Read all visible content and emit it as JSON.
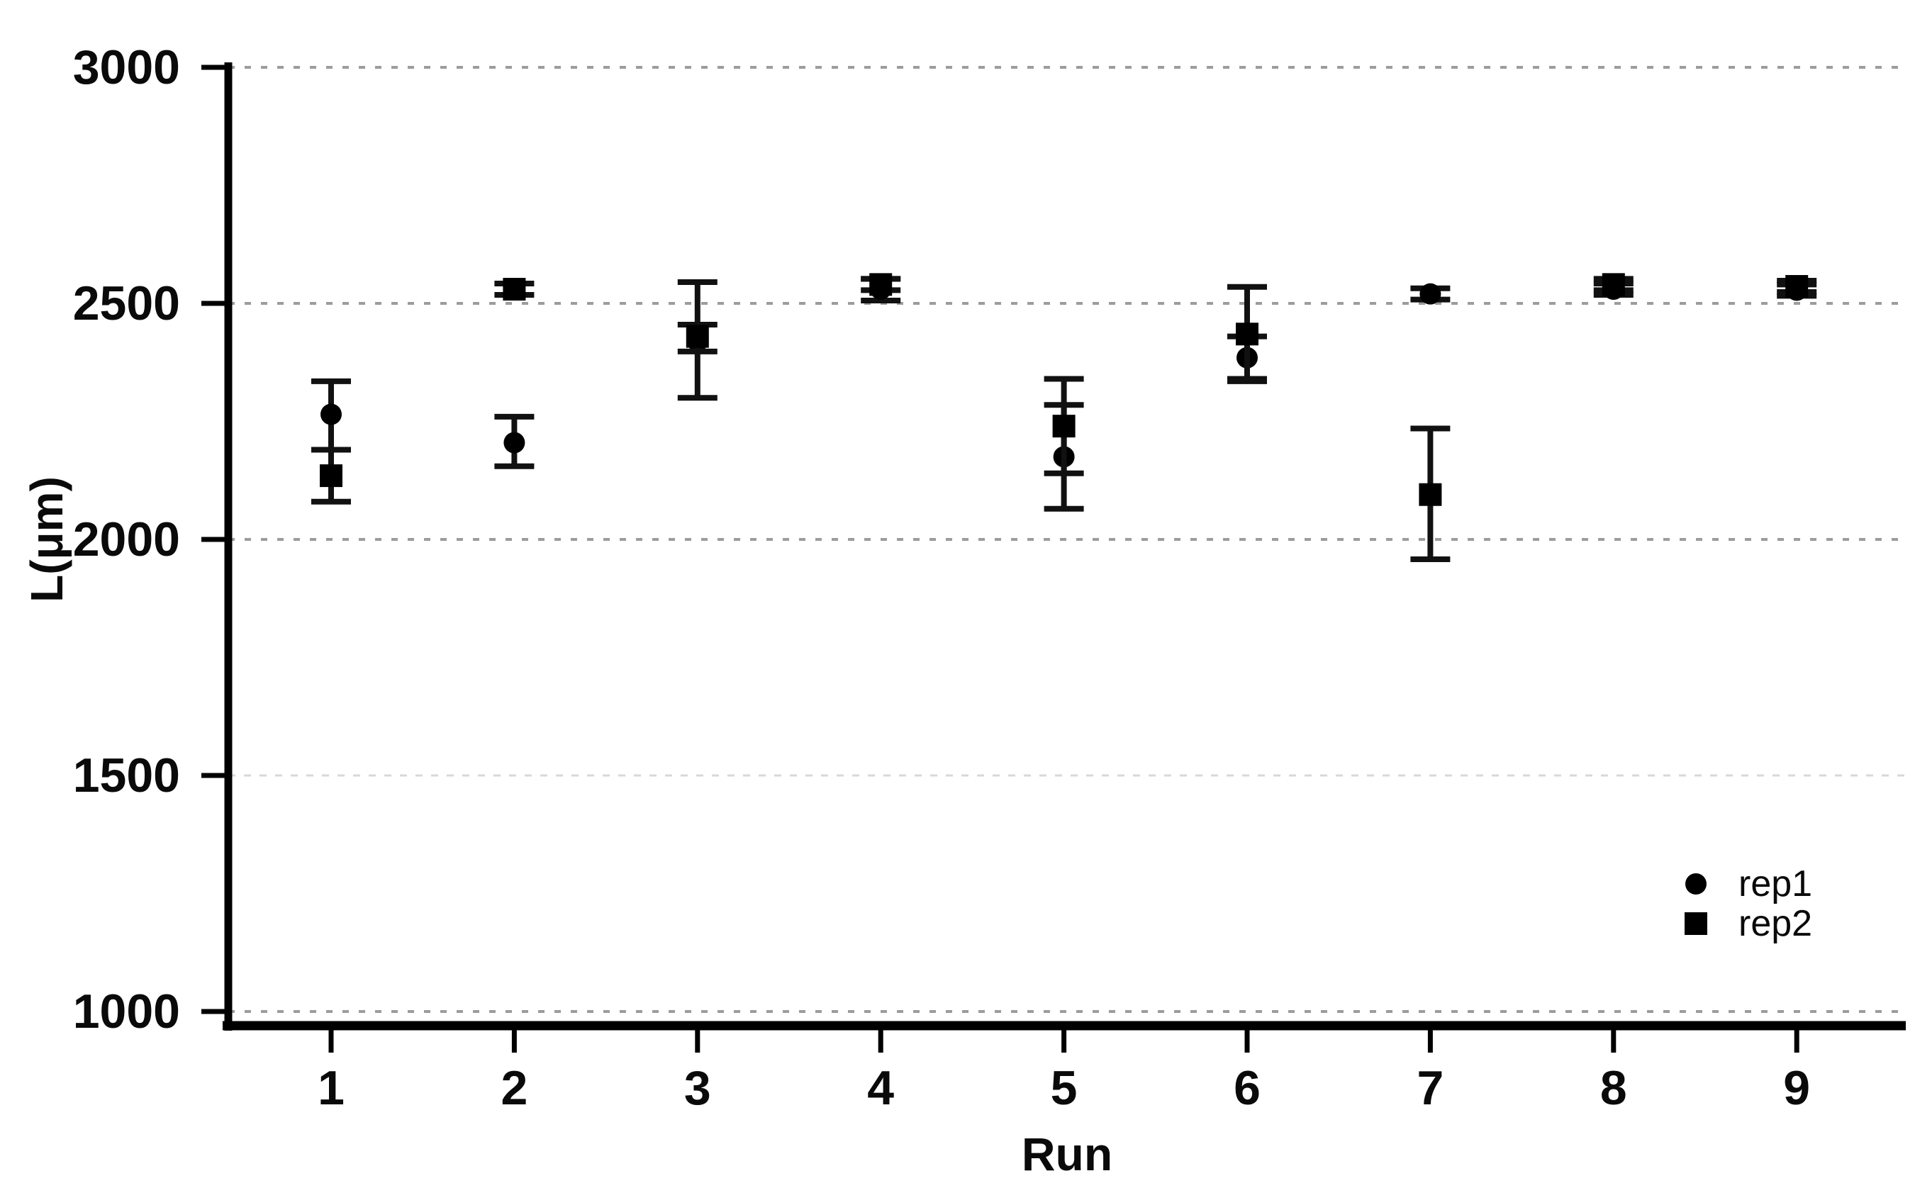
{
  "figure": {
    "background": "#ffffff"
  },
  "colors": {
    "marker": "#000000",
    "axis": "#000000",
    "error_bar": "#111111",
    "grid_major": "#9c9c9c",
    "grid_faint": "#d8d8d8",
    "text": "#0a0a0a"
  },
  "legend": {
    "position": "lower-right",
    "items": [
      {
        "label": "rep1",
        "marker": "circle"
      },
      {
        "label": "rep2",
        "marker": "square"
      }
    ]
  },
  "chart_data": {
    "type": "scatter",
    "title": "",
    "xlabel": "Run",
    "ylabel": "L(μm)",
    "xlim": [
      0.44,
      9.6
    ],
    "ylim": [
      970,
      3000
    ],
    "xticks": [
      1,
      2,
      3,
      4,
      5,
      6,
      7,
      8,
      9
    ],
    "xtick_labels": [
      "1",
      "2",
      "3",
      "4",
      "5",
      "6",
      "7",
      "8",
      "9"
    ],
    "yticks": [
      1000,
      1500,
      2000,
      2500,
      3000
    ],
    "ytick_labels": [
      "1000",
      "1500",
      "2000",
      "2500",
      "3000"
    ],
    "grid": "horizontal-dotted-at-yticks",
    "legend_position": "lower right",
    "series": [
      {
        "name": "rep1",
        "marker": "circle",
        "x": [
          1,
          2,
          3,
          4,
          5,
          6,
          7,
          8,
          9
        ],
        "y": [
          2265,
          2205,
          2420,
          2530,
          2175,
          2385,
          2520,
          2530,
          2528
        ],
        "err_low": [
          2190,
          2155,
          2300,
          2506,
          2065,
          2340,
          2508,
          2518,
          2516
        ],
        "err_high": [
          2335,
          2260,
          2545,
          2552,
          2285,
          2430,
          2532,
          2542,
          2540
        ]
      },
      {
        "name": "rep2",
        "marker": "square",
        "x": [
          1,
          2,
          3,
          4,
          5,
          6,
          7,
          8,
          9
        ],
        "y": [
          2135,
          2530,
          2430,
          2540,
          2240,
          2435,
          2095,
          2540,
          2536
        ],
        "err_low": [
          2080,
          2518,
          2398,
          2528,
          2140,
          2335,
          1958,
          2528,
          2524
        ],
        "err_high": [
          2190,
          2542,
          2455,
          2552,
          2340,
          2535,
          2235,
          2552,
          2548
        ]
      }
    ]
  }
}
